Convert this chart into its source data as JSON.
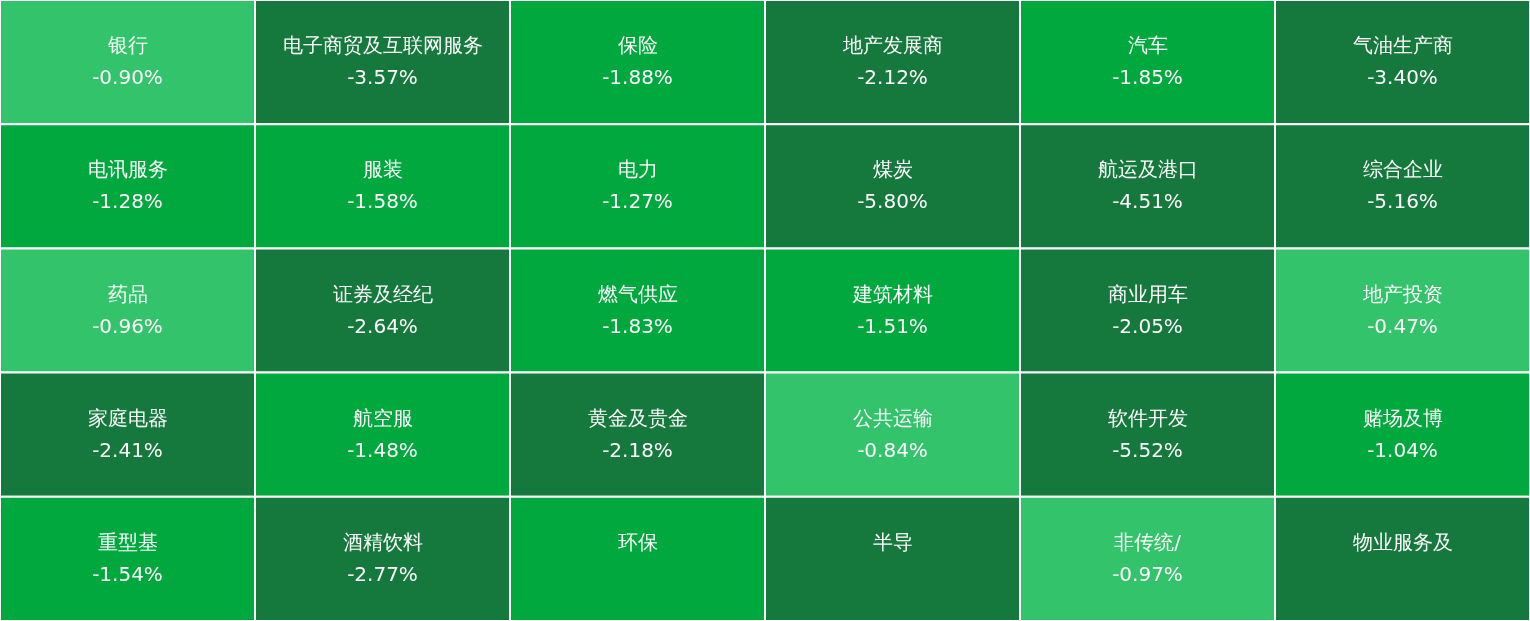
{
  "chart_data": {
    "type": "other",
    "categories": [
      "银行",
      "电子商贸及互联网服务",
      "保险",
      "地产发展商",
      "汽车",
      "气油生产商",
      "电讯服务",
      "服装",
      "电力",
      "煤炭",
      "航运及港口",
      "综合企业",
      "药品",
      "证券及经纪",
      "燃气供应",
      "建筑材料",
      "商业用车",
      "地产投资",
      "家庭电器",
      "航空服",
      "黄金及贵金",
      "公共运输",
      "软件开发",
      "赌场及博",
      "重型基",
      "酒精饮料",
      "环保",
      "半导",
      "非传统/",
      "物业服务及"
    ],
    "values": [
      -0.9,
      -3.57,
      -1.88,
      -2.12,
      -1.85,
      -3.4,
      -1.28,
      -1.58,
      -1.27,
      -5.8,
      -4.51,
      -5.16,
      -0.96,
      -2.64,
      -1.83,
      -1.51,
      -2.05,
      -0.47,
      -2.41,
      -1.48,
      -2.18,
      -0.84,
      -5.52,
      -1.04,
      -1.54,
      -2.77,
      null,
      null,
      -0.97,
      null
    ],
    "value_labels": [
      "-0.90%",
      "-3.57%",
      "-1.88%",
      "-2.12%",
      "-1.85%",
      "-3.40%",
      "-1.28%",
      "-1.58%",
      "-1.27%",
      "-5.80%",
      "-4.51%",
      "-5.16%",
      "-0.96%",
      "-2.64%",
      "-1.83%",
      "-1.51%",
      "-2.05%",
      "-0.47%",
      "-2.41%",
      "-1.48%",
      "-2.18%",
      "-0.84%",
      "-5.52%",
      "-1.04%",
      "-1.54%",
      "-2.77%",
      null,
      null,
      "-0.97%",
      null
    ],
    "colors": [
      "#33c36a",
      "#15783c",
      "#00a83e",
      "#15783c",
      "#00a83e",
      "#15783c",
      "#00a83e",
      "#00a83e",
      "#00a83e",
      "#15783c",
      "#15783c",
      "#15783c",
      "#33c36a",
      "#15783c",
      "#00a83e",
      "#00a83e",
      "#15783c",
      "#33c36a",
      "#15783c",
      "#00a83e",
      "#15783c",
      "#33c36a",
      "#15783c",
      "#00a83e",
      "#00a83e",
      "#15783c",
      "#00a83e",
      "#15783c",
      "#33c36a",
      "#15783c"
    ]
  }
}
